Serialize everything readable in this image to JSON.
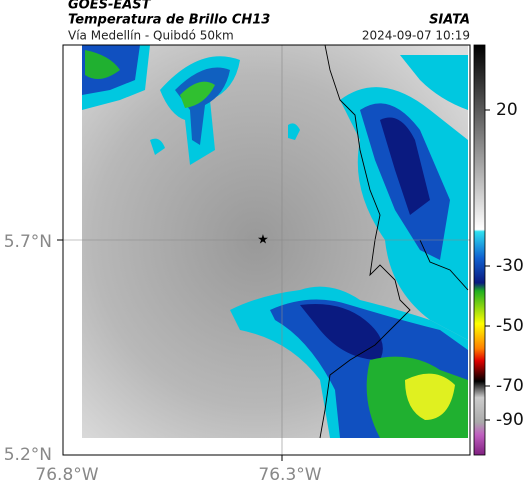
{
  "header": {
    "satellite": "GOES-EAST",
    "product": "Temperatura de Brillo CH13",
    "source": "SIATA",
    "route": "Vía Medellín - Quibdó 50km",
    "datetime": "2024-09-07 10:19"
  },
  "map": {
    "lat_labels": [
      "5.7°N",
      "5.2°N"
    ],
    "lon_labels": [
      "76.8°W",
      "76.3°W"
    ]
  },
  "colorbar": {
    "labels": [
      "20",
      "-30",
      "-50",
      "-70",
      "-90"
    ]
  }
}
